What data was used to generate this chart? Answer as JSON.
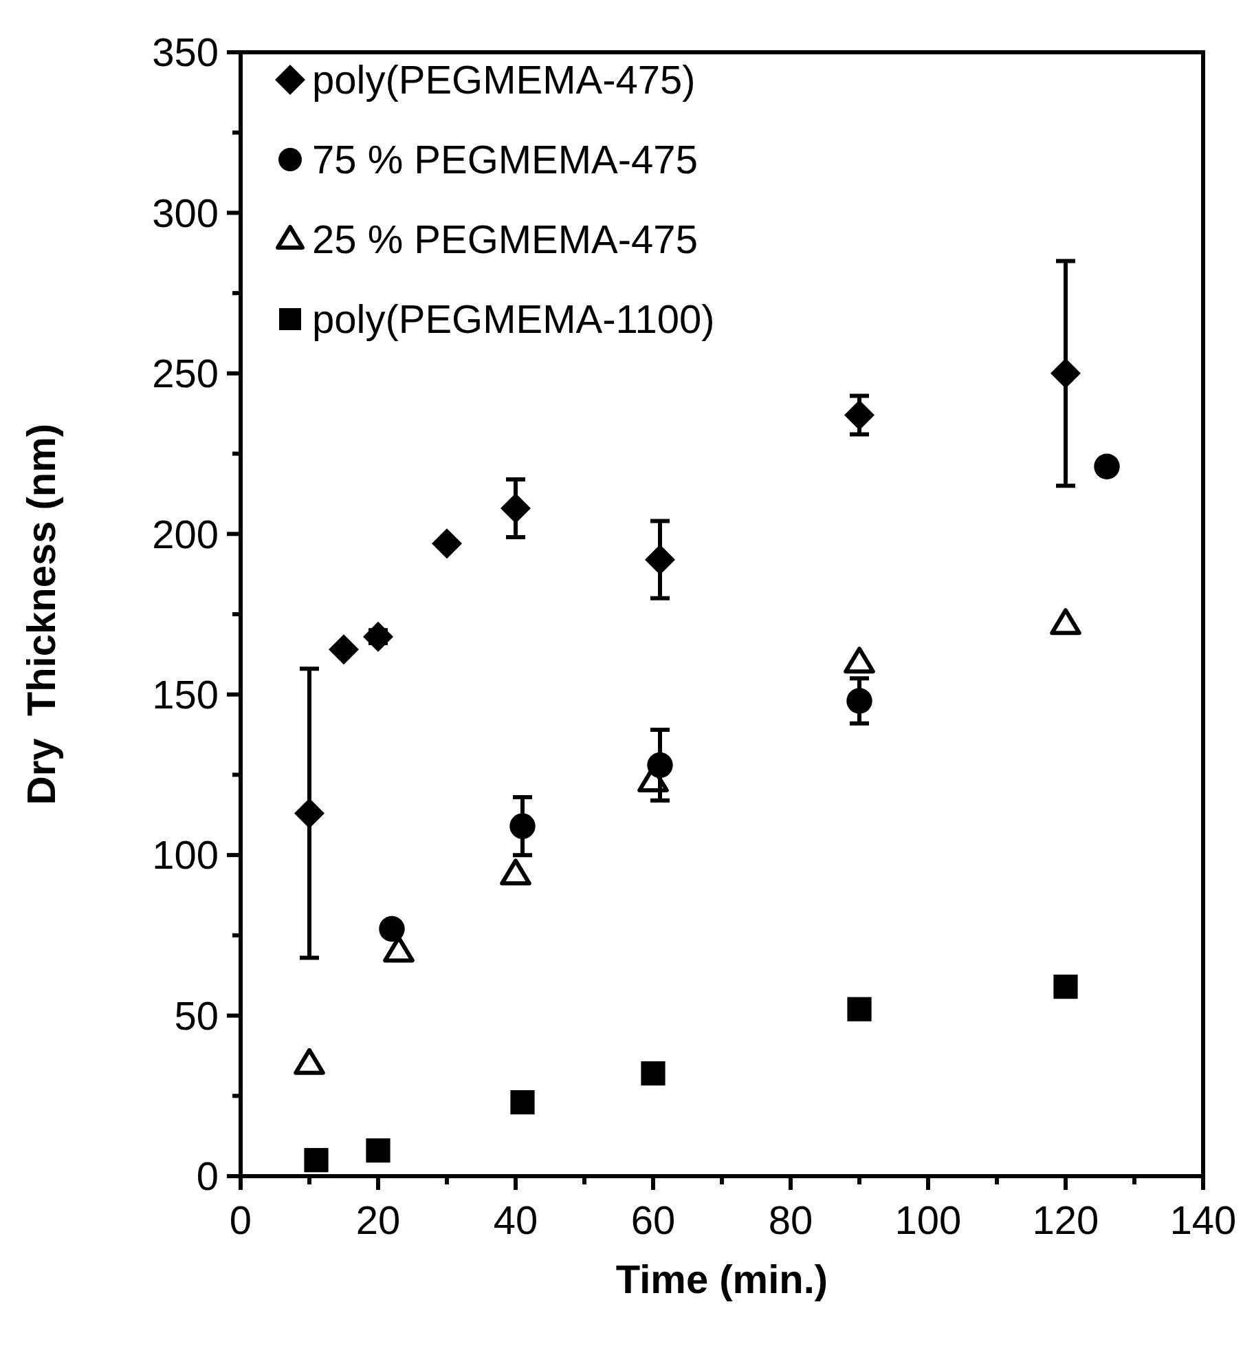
{
  "chart_data": {
    "type": "scatter",
    "xlabel": "Time (min.)",
    "ylabel": "Dry  Thickness (nm)",
    "xlim": [
      0,
      140
    ],
    "ylim": [
      0,
      350
    ],
    "xticks": [
      0,
      {
        "value": 10,
        "label": null
      },
      20,
      {
        "value": 30,
        "label": null
      },
      40,
      {
        "value": 50,
        "label": null
      },
      60,
      {
        "value": 70,
        "label": null
      },
      80,
      {
        "value": 90,
        "label": null
      },
      100,
      {
        "value": 110,
        "label": null
      },
      120,
      {
        "value": 130,
        "label": null
      },
      140
    ],
    "yticks": [
      0,
      {
        "value": 25,
        "label": null
      },
      50,
      {
        "value": 75,
        "label": null
      },
      100,
      {
        "value": 125,
        "label": null
      },
      150,
      {
        "value": 175,
        "label": null
      },
      200,
      {
        "value": 225,
        "label": null
      },
      250,
      {
        "value": 275,
        "label": null
      },
      300,
      {
        "value": 325,
        "label": null
      },
      350
    ],
    "grid": false,
    "legend": "top left",
    "series": [
      {
        "name": "poly(PEGMEMA-475)",
        "color": "#000000",
        "marker": "diamond",
        "x": [
          10,
          15,
          20,
          30,
          40,
          61,
          90,
          120
        ],
        "values": [
          113,
          164,
          168,
          197,
          208,
          192,
          237,
          250
        ],
        "errors": [
          45,
          null,
          2,
          null,
          9,
          12,
          6,
          35
        ]
      },
      {
        "name": "75 % PEGMEMA-475",
        "color": "#000000",
        "marker": "circle",
        "x": [
          22,
          41,
          61,
          90,
          126
        ],
        "values": [
          77,
          109,
          128,
          148,
          221
        ],
        "errors": [
          null,
          9,
          11,
          7,
          null
        ]
      },
      {
        "name": "25 % PEGMEMA-475",
        "color": "#000000",
        "marker": "triangle",
        "x": [
          10,
          23,
          40,
          60,
          90,
          120
        ],
        "values": [
          35,
          70,
          94,
          123,
          160,
          172
        ]
      },
      {
        "name": "poly(PEGMEMA-1100)",
        "color": "#000000",
        "marker": "square",
        "x": [
          11,
          20,
          41,
          60,
          90,
          120
        ],
        "values": [
          5,
          8,
          23,
          32,
          52,
          59
        ]
      }
    ]
  }
}
